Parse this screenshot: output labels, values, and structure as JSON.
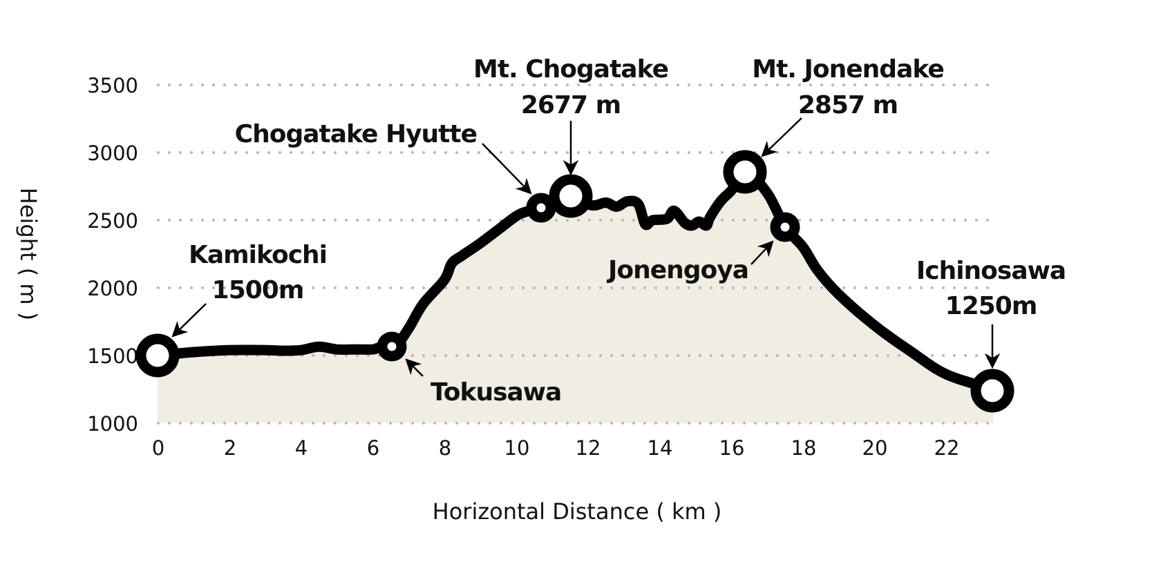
{
  "chart_data": {
    "type": "area",
    "title": "",
    "xlabel": "Horizontal Distance ( km )",
    "ylabel": "Height ( m )",
    "xlim": [
      0,
      23.3
    ],
    "ylim": [
      1000,
      3500
    ],
    "x_ticks": [
      "0",
      "2",
      "4",
      "6",
      "8",
      "10",
      "12",
      "14",
      "16",
      "18",
      "20",
      "22"
    ],
    "y_ticks": [
      "3500",
      "3000",
      "2500",
      "2000",
      "1500",
      "1000"
    ],
    "grid": "horizontal dotted",
    "legend": "none",
    "fill_color": "#f1ede2",
    "line_color": "#000000",
    "gridline_color": "#b5b5b5",
    "profile": {
      "x": [
        0,
        1,
        2,
        3,
        3.5,
        4,
        4.5,
        5,
        5.5,
        6,
        6.2,
        6.6,
        7,
        7.4,
        8,
        8.2,
        8.5,
        9,
        9.5,
        10,
        10.3,
        10.7,
        11.5,
        12.1,
        12.5,
        12.8,
        13.1,
        13.4,
        13.6,
        13.8,
        14.2,
        14.4,
        14.7,
        14.9,
        15.1,
        15.3,
        15.4,
        15.7,
        16,
        16.4,
        17,
        17.5,
        18,
        18.4,
        19,
        20,
        21,
        22,
        23.3
      ],
      "y": [
        1500,
        1525,
        1540,
        1540,
        1535,
        1540,
        1565,
        1545,
        1545,
        1545,
        1560,
        1560,
        1700,
        1880,
        2060,
        2180,
        2240,
        2330,
        2430,
        2530,
        2565,
        2590,
        2677,
        2610,
        2630,
        2600,
        2640,
        2620,
        2470,
        2500,
        2510,
        2570,
        2480,
        2460,
        2490,
        2460,
        2520,
        2640,
        2720,
        2857,
        2700,
        2450,
        2300,
        2130,
        1950,
        1720,
        1530,
        1360,
        1250
      ]
    },
    "annotations": [
      {
        "name": "Kamikochi",
        "height": "1500m",
        "x": 0,
        "y": 1500
      },
      {
        "name": "Tokusawa",
        "height": "",
        "x": 6.6,
        "y": 1560
      },
      {
        "name": "Chogatake Hyutte",
        "height": "",
        "x": 10.7,
        "y": 2590
      },
      {
        "name": "Mt. Chogatake",
        "height": "2677m",
        "x": 11.5,
        "y": 2677
      },
      {
        "name": "Mt. Jonendake",
        "height": "2857m",
        "x": 16.4,
        "y": 2857
      },
      {
        "name": "Jonengoya",
        "height": "",
        "x": 17.5,
        "y": 2450
      },
      {
        "name": "Ichinosawa",
        "height": "1250m",
        "x": 23.3,
        "y": 1250
      }
    ]
  },
  "labels": {
    "kamikochi": {
      "name": "Kamikochi",
      "height": "1500m"
    },
    "tokusawa": {
      "name": "Tokusawa"
    },
    "chogatake_hyutte": {
      "name": "Chogatake Hyutte"
    },
    "mt_chogatake": {
      "name": "Mt. Chogatake",
      "height": "2677 m"
    },
    "mt_jonendake": {
      "name": "Mt. Jonendake",
      "height": "2857 m"
    },
    "jonengoya": {
      "name": "Jonengoya"
    },
    "ichinosawa": {
      "name": "Ichinosawa",
      "height": "1250m"
    }
  }
}
